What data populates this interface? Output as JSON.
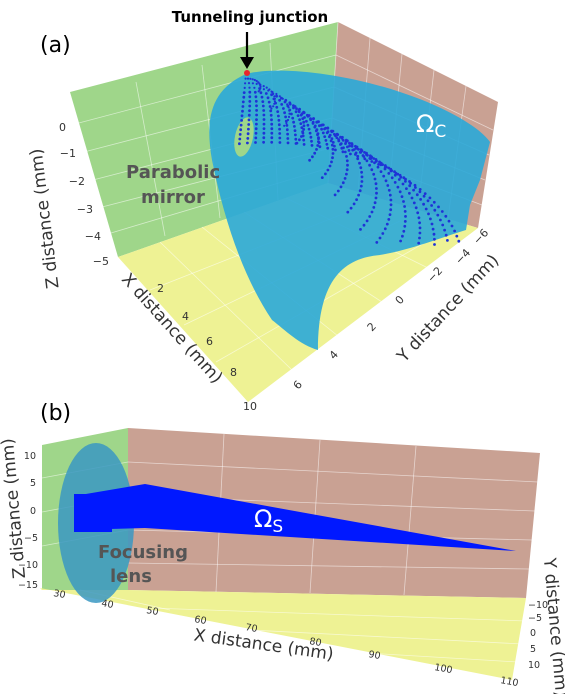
{
  "colors": {
    "green_wall": "#9fd68a",
    "pink_wall": "#c9a193",
    "yellow_floor": "#eef294",
    "mirror_fill": "#2aa8d8",
    "dot_color": "#1f33d6",
    "beam_color": "#0018ff",
    "lens_fill": "#3a98c2",
    "junction_color": "#e8262e"
  },
  "panel_a": {
    "label": "(a)",
    "annotation_top": "Tunneling junction",
    "annotation_left": [
      "Parabolic",
      "mirror"
    ],
    "omega_symbol": "Ω",
    "omega_subscript": "C",
    "z_axis": {
      "title": "Z distance (mm)",
      "ticks": [
        "0",
        "−1",
        "−2",
        "−3",
        "−4",
        "−5"
      ]
    },
    "x_axis": {
      "title": "X distance (mm)",
      "ticks": [
        "2",
        "4",
        "6",
        "8",
        "10"
      ]
    },
    "y_axis": {
      "title": "Y distance (mm)",
      "ticks": [
        "−6",
        "−4",
        "−2",
        "0",
        "2",
        "4",
        "6"
      ]
    }
  },
  "panel_b": {
    "label": "(b)",
    "annotation": [
      "Focusing",
      "lens"
    ],
    "omega_symbol": "Ω",
    "omega_subscript": "S",
    "z_axis": {
      "title": "Z distance (mm)",
      "ticks": [
        "10",
        "5",
        "0",
        "−5",
        "−10",
        "−15"
      ]
    },
    "x_axis": {
      "title": "X distance (mm)",
      "ticks": [
        "30",
        "40",
        "50",
        "60",
        "70",
        "80",
        "90",
        "100",
        "110"
      ]
    },
    "y_axis": {
      "title": "Y distance (mm)",
      "ticks": [
        "−10",
        "−5",
        "0",
        "5",
        "10"
      ]
    }
  }
}
